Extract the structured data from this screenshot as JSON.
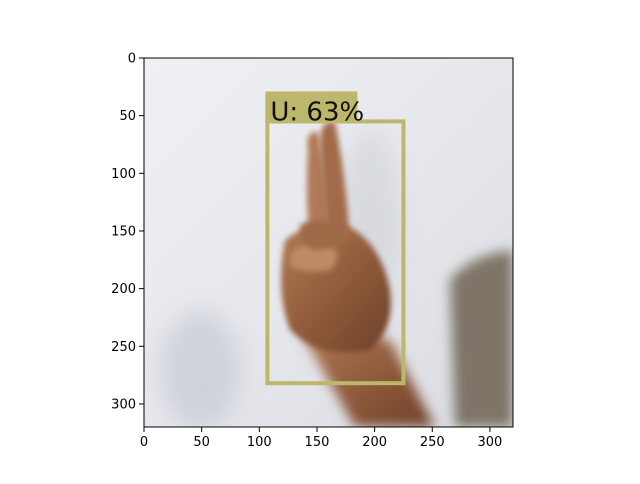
{
  "figure": {
    "x_ticks": [
      "0",
      "50",
      "100",
      "150",
      "200",
      "250",
      "300"
    ],
    "y_ticks": [
      "0",
      "50",
      "100",
      "150",
      "200",
      "250",
      "300"
    ]
  },
  "image": {
    "description_hidden": false
  },
  "detection": {
    "label": "U: 63%",
    "class": "U",
    "confidence": 0.63,
    "box_color": "#bdb76b",
    "box_xmin_data": 107,
    "box_ymin_data": 55,
    "box_xmax_data": 225,
    "box_ymax_data": 282
  },
  "axes": {
    "xlim": [
      0,
      320
    ],
    "ylim": [
      320,
      0
    ]
  }
}
